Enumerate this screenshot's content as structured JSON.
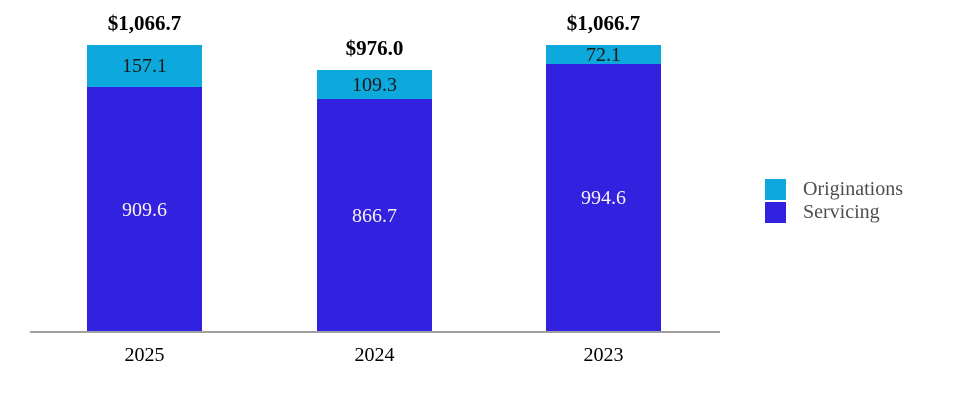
{
  "chart_data": {
    "type": "bar",
    "stacked": true,
    "categories": [
      "2025",
      "2024",
      "2023"
    ],
    "series": [
      {
        "name": "Servicing",
        "color": "#3222df",
        "values": [
          909.6,
          866.7,
          994.6
        ]
      },
      {
        "name": "Originations",
        "color": "#0da8dc",
        "values": [
          157.1,
          109.3,
          72.1
        ]
      }
    ],
    "totals": [
      "$1,066.7",
      "$976.0",
      "$1,066.7"
    ],
    "legend": {
      "position": "right",
      "entries": [
        "Originations",
        "Servicing"
      ]
    },
    "axis": {
      "ylim": [
        0,
        1100
      ],
      "grid": false,
      "baseline_color": "#a0a0a0"
    }
  },
  "colors": {
    "total_label": "#000000",
    "label_on_originations": "#1a1a1a",
    "label_on_servicing": "#f8f4f4",
    "legend_text": "#4d4d4d",
    "category_label": "#000000"
  }
}
